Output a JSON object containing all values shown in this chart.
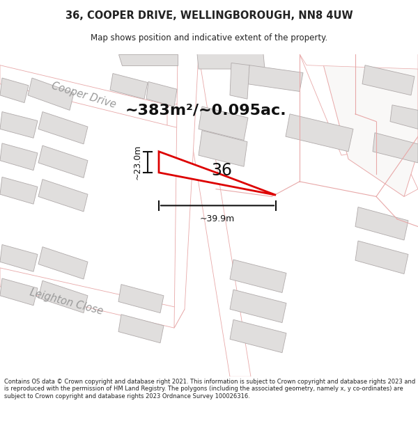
{
  "title": "36, COOPER DRIVE, WELLINGBOROUGH, NN8 4UW",
  "subtitle": "Map shows position and indicative extent of the property.",
  "area_text": "~383m²/~0.095ac.",
  "label_36": "36",
  "dim_width": "~39.9m",
  "dim_height": "~23.0m",
  "footer": "Contains OS data © Crown copyright and database right 2021. This information is subject to Crown copyright and database rights 2023 and is reproduced with the permission of HM Land Registry. The polygons (including the associated geometry, namely x, y co-ordinates) are subject to Crown copyright and database rights 2023 Ordnance Survey 100026316.",
  "map_bg": "#f9f8f7",
  "building_fill": "#e0dedd",
  "building_edge": "#b0aaaa",
  "road_outline": "#e8a8a8",
  "highlight_color": "#dd0000",
  "street_label_color": "#999999",
  "title_color": "#222222",
  "dim_color": "#111111",
  "footer_sep_color": "#cccccc"
}
